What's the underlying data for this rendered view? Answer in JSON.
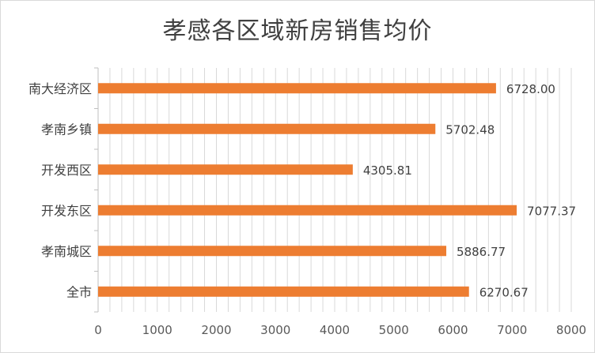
{
  "chart_data": {
    "type": "bar",
    "orientation": "horizontal",
    "title": "孝感各区域新房销售均价",
    "categories": [
      "南大经济区",
      "孝南乡镇",
      "开发西区",
      "开发东区",
      "孝南城区",
      "全市"
    ],
    "values": [
      6728.0,
      5702.48,
      4305.81,
      7077.37,
      5886.77,
      6270.67
    ],
    "value_labels": [
      "6728.00",
      "5702.48",
      "4305.81",
      "7077.37",
      "5886.77",
      "6270.67"
    ],
    "xlim": [
      0,
      8000
    ],
    "x_ticks": [
      0,
      1000,
      2000,
      3000,
      4000,
      5000,
      6000,
      7000,
      8000
    ],
    "xlabel": "",
    "ylabel": "",
    "grid": "vertical",
    "legend": "none",
    "colors": {
      "bar": "#ED7D31",
      "grid": "#d9d9d9",
      "axis": "#bfbfbf"
    }
  }
}
